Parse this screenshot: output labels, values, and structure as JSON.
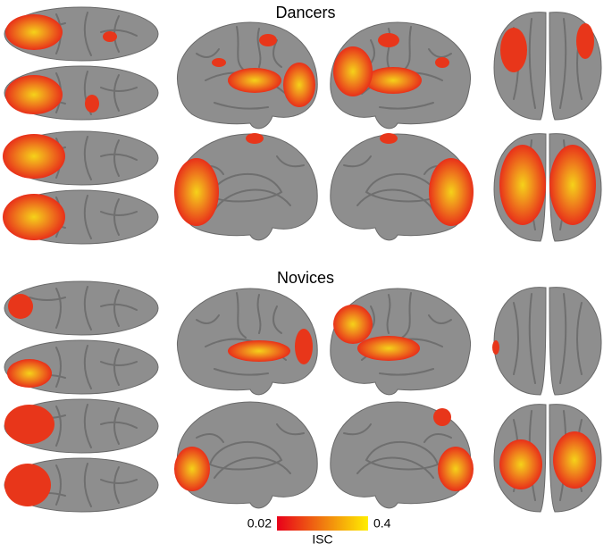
{
  "panels": [
    {
      "title": "Dancers"
    },
    {
      "title": "Novices"
    }
  ],
  "colorbar": {
    "min_label": "0.02",
    "max_label": "0.4",
    "title": "ISC"
  }
}
